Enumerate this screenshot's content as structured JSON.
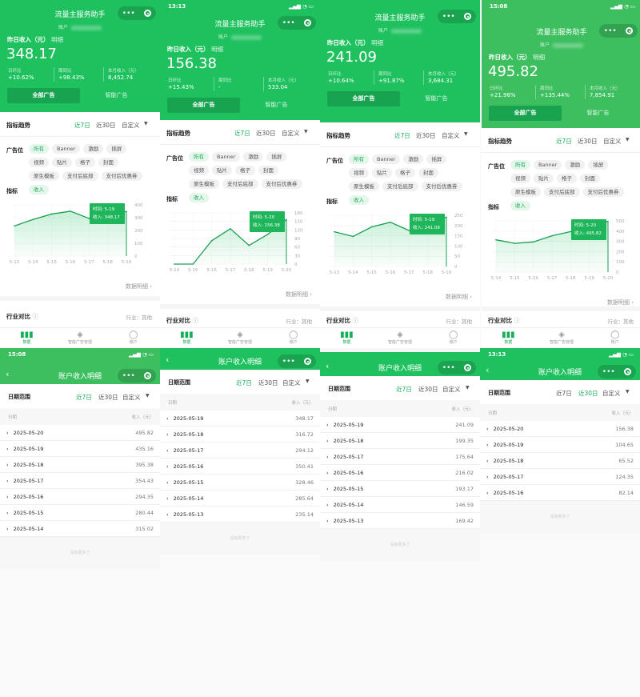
{
  "colors": {
    "brand_green": "#1fc15f",
    "accent_text": "#1aad5a",
    "button_dark": "#17a34f"
  },
  "common": {
    "app_title": "流量主服务助手",
    "account_label": "账户",
    "income_label": "昨日收入（元）",
    "detail_link": "明细",
    "stat_labels": [
      "日环比",
      "周同比",
      "本月收入（元）"
    ],
    "ad_tabs": [
      "全部广告",
      "智能广告"
    ],
    "trend_title": "指标趋势",
    "range_tabs": [
      "近7日",
      "近30日",
      "自定义"
    ],
    "slot_label": "广告位",
    "slots": [
      "所有",
      "Banner",
      "激励",
      "插屏",
      "视频",
      "贴片",
      "格子",
      "封面",
      "原生模板",
      "支付后底部",
      "支付后优惠券"
    ],
    "metric_label": "指标",
    "metric": "收入",
    "more_link": "数据明细",
    "industry_title": "行业对比",
    "industry_value": "行业：其他",
    "nav": [
      "数据",
      "智能广告管理",
      "账户"
    ],
    "detail_title": "账户收入明细",
    "date_range_label": "日期范围",
    "col_date": "日期",
    "col_income": "收入（元）",
    "footer": "没有更多了"
  },
  "overview_panels": [
    {
      "status_time": "",
      "income": "348.17",
      "stats": [
        "+10.62%",
        "+98.43%",
        "8,452.74"
      ],
      "tooltip": {
        "time": "时间: 5-19",
        "value": "收入: 348.17"
      }
    },
    {
      "status_time": "13:13",
      "income": "156.38",
      "stats": [
        "+15.43%",
        "-",
        "533.04"
      ],
      "tooltip": {
        "time": "时间: 5-20",
        "value": "收入: 156.38"
      }
    },
    {
      "status_time": "",
      "income": "241.09",
      "stats": [
        "+10.64%",
        "+91.87%",
        "3,684.31"
      ],
      "tooltip": {
        "time": "时间: 5-19",
        "value": "收入: 241.09"
      }
    },
    {
      "status_time": "15:08",
      "income": "495.82",
      "stats": [
        "+21.98%",
        "+135.44%",
        "7,854.91"
      ],
      "tooltip": {
        "time": "时间: 5-20",
        "value": "收入: 495.82"
      }
    }
  ],
  "chart_data": [
    {
      "type": "line",
      "categories": [
        "5-13",
        "5-14",
        "5-15",
        "5-16",
        "5-17",
        "5-18",
        "5-19"
      ],
      "values": [
        235.14,
        285.64,
        328.46,
        350.41,
        294.12,
        316.72,
        348.17
      ],
      "ylim": [
        0,
        400
      ],
      "yticks": [
        "0",
        "100",
        "200",
        "300",
        "400"
      ],
      "grid": true
    },
    {
      "type": "line",
      "categories": [
        "5-14",
        "5-15",
        "5-16",
        "5-17",
        "5-18",
        "5-19",
        "5-20"
      ],
      "values": [
        0,
        0,
        82.14,
        124.35,
        65.52,
        104.65,
        156.38
      ],
      "ylim": [
        0,
        180
      ],
      "yticks": [
        "0",
        "30",
        "60",
        "90",
        "120",
        "150",
        "180"
      ],
      "grid": true
    },
    {
      "type": "line",
      "categories": [
        "5-13",
        "5-14",
        "5-15",
        "5-16",
        "5-17",
        "5-18",
        "5-19"
      ],
      "values": [
        169.42,
        146.59,
        193.17,
        216.02,
        175.64,
        199.35,
        241.09
      ],
      "ylim": [
        0,
        250
      ],
      "yticks": [
        "0",
        "50",
        "100",
        "150",
        "200",
        "250"
      ],
      "grid": true
    },
    {
      "type": "line",
      "categories": [
        "5-14",
        "5-15",
        "5-16",
        "5-17",
        "5-18",
        "5-19",
        "5-20"
      ],
      "values": [
        315.02,
        280.44,
        294.35,
        354.43,
        395.38,
        435.16,
        495.82
      ],
      "ylim": [
        0,
        500
      ],
      "yticks": [
        "0",
        "100",
        "200",
        "300",
        "400",
        "500"
      ],
      "grid": true
    }
  ],
  "detail_panels": [
    {
      "status_time": "15:08",
      "active_range": 0,
      "rows": [
        {
          "date": "2025-05-20",
          "value": "495.82"
        },
        {
          "date": "2025-05-19",
          "value": "435.16"
        },
        {
          "date": "2025-05-18",
          "value": "395.38"
        },
        {
          "date": "2025-05-17",
          "value": "354.43"
        },
        {
          "date": "2025-05-16",
          "value": "294.35"
        },
        {
          "date": "2025-05-15",
          "value": "280.44"
        },
        {
          "date": "2025-05-14",
          "value": "315.02"
        }
      ]
    },
    {
      "status_time": "",
      "active_range": 0,
      "rows": [
        {
          "date": "2025-05-19",
          "value": "348.17"
        },
        {
          "date": "2025-05-18",
          "value": "316.72"
        },
        {
          "date": "2025-05-17",
          "value": "294.12"
        },
        {
          "date": "2025-05-16",
          "value": "350.41"
        },
        {
          "date": "2025-05-15",
          "value": "328.46"
        },
        {
          "date": "2025-05-14",
          "value": "285.64"
        },
        {
          "date": "2025-05-13",
          "value": "235.14"
        }
      ]
    },
    {
      "status_time": "",
      "active_range": 0,
      "rows": [
        {
          "date": "2025-05-19",
          "value": "241.09"
        },
        {
          "date": "2025-05-18",
          "value": "199.35"
        },
        {
          "date": "2025-05-17",
          "value": "175.64"
        },
        {
          "date": "2025-05-16",
          "value": "216.02"
        },
        {
          "date": "2025-05-15",
          "value": "193.17"
        },
        {
          "date": "2025-05-14",
          "value": "146.59"
        },
        {
          "date": "2025-05-13",
          "value": "169.42"
        }
      ]
    },
    {
      "status_time": "13:13",
      "active_range": 1,
      "rows": [
        {
          "date": "2025-05-20",
          "value": "156.38"
        },
        {
          "date": "2025-05-19",
          "value": "104.65"
        },
        {
          "date": "2025-05-18",
          "value": "65.52"
        },
        {
          "date": "2025-05-17",
          "value": "124.35"
        },
        {
          "date": "2025-05-16",
          "value": "82.14"
        }
      ]
    }
  ]
}
